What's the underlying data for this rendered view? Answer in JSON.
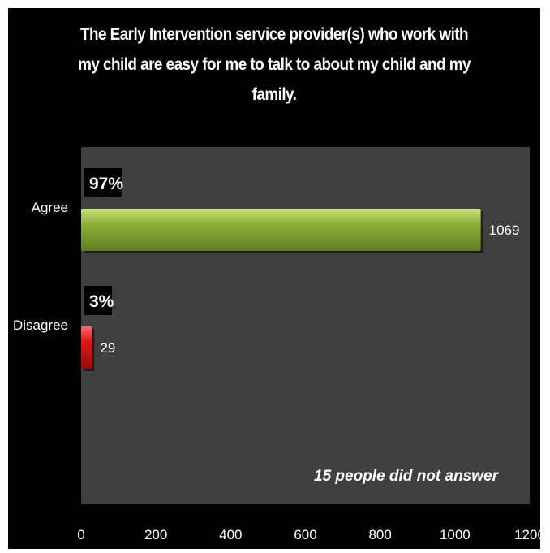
{
  "chart_data": {
    "type": "bar",
    "orientation": "horizontal",
    "title": "The Early Intervention service provider(s) who work with my child are easy for me to talk to about my child and my family.",
    "categories": [
      "Agree",
      "Disagree"
    ],
    "values": [
      1069,
      29
    ],
    "percent_labels": [
      "97%",
      "3%"
    ],
    "xlim": [
      0,
      1200
    ],
    "x_ticks": [
      0,
      200,
      400,
      600,
      800,
      1000,
      1200
    ],
    "grid": false,
    "legend": "none",
    "annotation": "15 people did not answer",
    "colors": {
      "page_background": "#000000",
      "plot_background": "#404040",
      "bars": [
        "#8db33a",
        "#e01818"
      ],
      "text": "#ffffff"
    }
  }
}
